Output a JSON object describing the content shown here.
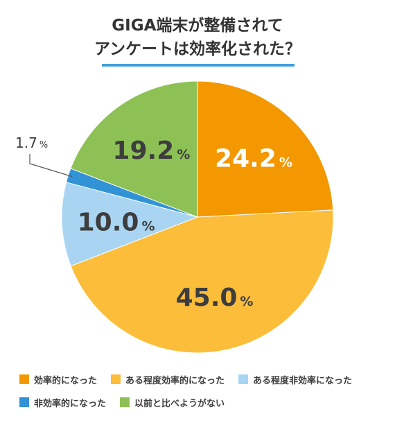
{
  "title": {
    "line1": "GIGA端末が整備されて",
    "line2": "アンケートは効率化された？"
  },
  "colors": {
    "accent_underline": "#3f9fdb"
  },
  "chart_data": {
    "type": "pie",
    "title": "GIGA端末が整備されてアンケートは効率化された？",
    "start_angle_deg": 0,
    "direction": "clockwise",
    "slices": [
      {
        "label": "効率的になった",
        "value": 24.2,
        "display": "24.2",
        "unit": "%",
        "color": "#f39800",
        "label_color": "#ffffff"
      },
      {
        "label": "ある程度効率的になった",
        "value": 45.0,
        "display": "45.0",
        "unit": "%",
        "color": "#fbbd3a",
        "label_color": "#3d3d3d"
      },
      {
        "label": "ある程度非効率になった",
        "value": 10.0,
        "display": "10.0",
        "unit": "%",
        "color": "#a9d5f2",
        "label_color": "#3d3d3d"
      },
      {
        "label": "非効率的になった",
        "value": 1.7,
        "display": "1.7",
        "unit": "%",
        "color": "#3193d6",
        "label_color": "#3d3d3d",
        "callout": true
      },
      {
        "label": "以前と比べようがない",
        "value": 19.2,
        "display": "19.2",
        "unit": "%",
        "color": "#8dc155",
        "label_color": "#3d3d3d"
      }
    ],
    "legend_rows": [
      [
        0,
        1,
        2
      ],
      [
        3,
        4
      ]
    ]
  }
}
